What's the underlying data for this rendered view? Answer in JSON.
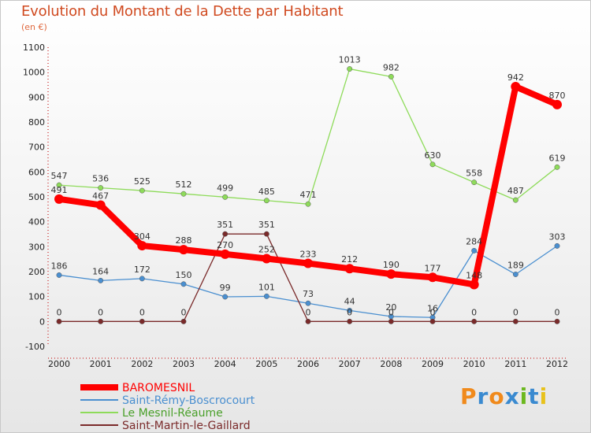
{
  "header": {
    "title": "Evolution du Montant de la Dette par Habitant",
    "subtitle": "(en €)"
  },
  "logo": {
    "text": "Proxiti",
    "letters": [
      "P",
      "r",
      "o",
      "x",
      "i",
      "t",
      "i"
    ],
    "colors": [
      "#f08a1c",
      "#3a8ad0",
      "#f08a1c",
      "#3a8ad0",
      "#6cb820",
      "#3a8ad0",
      "#e8c21c"
    ]
  },
  "chart_data": {
    "type": "line",
    "title": "Evolution du Montant de la Dette par Habitant",
    "subtitle": "(en €)",
    "x": [
      "2000",
      "2001",
      "2002",
      "2003",
      "2004",
      "2005",
      "2006",
      "2007",
      "2008",
      "2009",
      "2010",
      "2011",
      "2012"
    ],
    "ylim": [
      -100,
      1100
    ],
    "yticks": [
      "-100",
      "0",
      "100",
      "200",
      "300",
      "400",
      "500",
      "600",
      "700",
      "800",
      "900",
      "1000",
      "1100"
    ],
    "grid": false,
    "legend_position": "bottom-left",
    "series": [
      {
        "name": "BAROMESNIL",
        "color": "#ff0000",
        "values": [
          491,
          467,
          304,
          288,
          270,
          252,
          233,
          212,
          190,
          177,
          148,
          942,
          870
        ],
        "labels": [
          "491",
          "467",
          "304",
          "288",
          "270",
          "252",
          "233",
          "212",
          "190",
          "177",
          "148",
          "942",
          "870"
        ]
      },
      {
        "name": "Saint-Rémy-Boscrocourt",
        "color": "#4a8fd0",
        "values": [
          186,
          164,
          172,
          150,
          99,
          101,
          73,
          44,
          20,
          16,
          284,
          189,
          303
        ],
        "labels": [
          "186",
          "164",
          "172",
          "150",
          "99",
          "101",
          "73",
          "44",
          "20",
          "16",
          "284",
          "189",
          "303"
        ]
      },
      {
        "name": "Le Mesnil-Réaume",
        "color": "#8edb5a",
        "values": [
          547,
          536,
          525,
          512,
          499,
          485,
          471,
          1013,
          982,
          630,
          558,
          487,
          619
        ],
        "labels": [
          "547",
          "536",
          "525",
          "512",
          "499",
          "485",
          "471",
          "1013",
          "982",
          "630",
          "558",
          "487",
          "619"
        ]
      },
      {
        "name": "Saint-Martin-le-Gaillard",
        "color": "#7a2a2a",
        "values": [
          0,
          0,
          0,
          0,
          351,
          351,
          0,
          0,
          0,
          0,
          0,
          0,
          0
        ],
        "labels": [
          "0",
          "0",
          "0",
          "0",
          "351",
          "351",
          "0",
          "0",
          "0",
          "0",
          "0",
          "0",
          "0"
        ]
      }
    ]
  }
}
